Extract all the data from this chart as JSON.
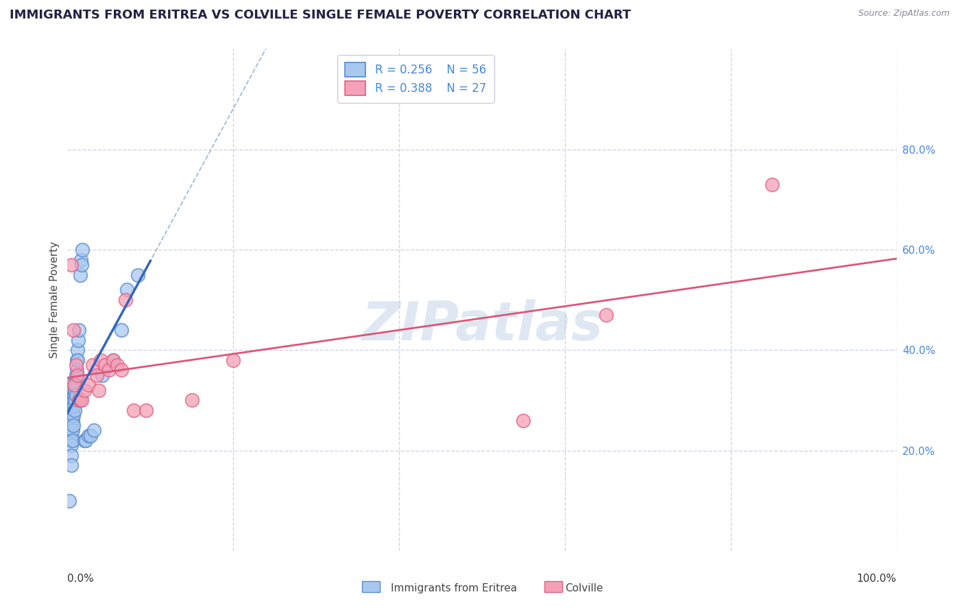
{
  "title": "IMMIGRANTS FROM ERITREA VS COLVILLE SINGLE FEMALE POVERTY CORRELATION CHART",
  "source": "Source: ZipAtlas.com",
  "ylabel": "Single Female Poverty",
  "watermark": "ZIPatlas",
  "legend1_label": "R = 0.256    N = 56",
  "legend2_label": "R = 0.388    N = 27",
  "bottom_label1": "Immigrants from Eritrea",
  "bottom_label2": "Colville",
  "blue_color": "#a8c8f0",
  "pink_color": "#f4a0b8",
  "blue_edge_color": "#5588cc",
  "pink_edge_color": "#e06080",
  "blue_line_color": "#3366bb",
  "pink_line_color": "#dd5577",
  "dashed_line_color": "#88aad0",
  "background_color": "#ffffff",
  "grid_color": "#d0d4e8",
  "xlim": [
    0.0,
    1.0
  ],
  "ylim": [
    0.0,
    1.0
  ],
  "blue_x": [
    0.002,
    0.003,
    0.003,
    0.004,
    0.004,
    0.004,
    0.004,
    0.004,
    0.005,
    0.005,
    0.005,
    0.005,
    0.005,
    0.005,
    0.005,
    0.005,
    0.005,
    0.006,
    0.006,
    0.006,
    0.006,
    0.006,
    0.006,
    0.007,
    0.007,
    0.007,
    0.007,
    0.008,
    0.008,
    0.008,
    0.009,
    0.009,
    0.009,
    0.01,
    0.01,
    0.01,
    0.011,
    0.011,
    0.012,
    0.012,
    0.013,
    0.014,
    0.015,
    0.016,
    0.017,
    0.018,
    0.02,
    0.022,
    0.025,
    0.028,
    0.032,
    0.042,
    0.055,
    0.065,
    0.072,
    0.085
  ],
  "blue_y": [
    0.1,
    0.28,
    0.25,
    0.3,
    0.28,
    0.26,
    0.24,
    0.22,
    0.33,
    0.31,
    0.29,
    0.27,
    0.25,
    0.23,
    0.21,
    0.19,
    0.17,
    0.32,
    0.3,
    0.28,
    0.26,
    0.24,
    0.22,
    0.31,
    0.29,
    0.27,
    0.25,
    0.33,
    0.31,
    0.29,
    0.32,
    0.3,
    0.28,
    0.35,
    0.33,
    0.31,
    0.38,
    0.36,
    0.4,
    0.38,
    0.42,
    0.44,
    0.55,
    0.58,
    0.57,
    0.6,
    0.22,
    0.22,
    0.23,
    0.23,
    0.24,
    0.35,
    0.38,
    0.44,
    0.52,
    0.55
  ],
  "pink_x": [
    0.005,
    0.007,
    0.008,
    0.01,
    0.012,
    0.014,
    0.015,
    0.017,
    0.02,
    0.025,
    0.03,
    0.035,
    0.038,
    0.04,
    0.045,
    0.05,
    0.055,
    0.06,
    0.065,
    0.07,
    0.08,
    0.095,
    0.15,
    0.2,
    0.55,
    0.65,
    0.85
  ],
  "pink_y": [
    0.57,
    0.44,
    0.33,
    0.37,
    0.35,
    0.3,
    0.3,
    0.3,
    0.32,
    0.33,
    0.37,
    0.35,
    0.32,
    0.38,
    0.37,
    0.36,
    0.38,
    0.37,
    0.36,
    0.5,
    0.28,
    0.28,
    0.3,
    0.38,
    0.26,
    0.47,
    0.73
  ],
  "ytick_positions": [
    0.2,
    0.4,
    0.6,
    0.8
  ],
  "ytick_labels": [
    "20.0%",
    "40.0%",
    "60.0%",
    "80.0%"
  ],
  "right_label_color": "#4488dd",
  "title_color": "#222244",
  "source_color": "#888899"
}
